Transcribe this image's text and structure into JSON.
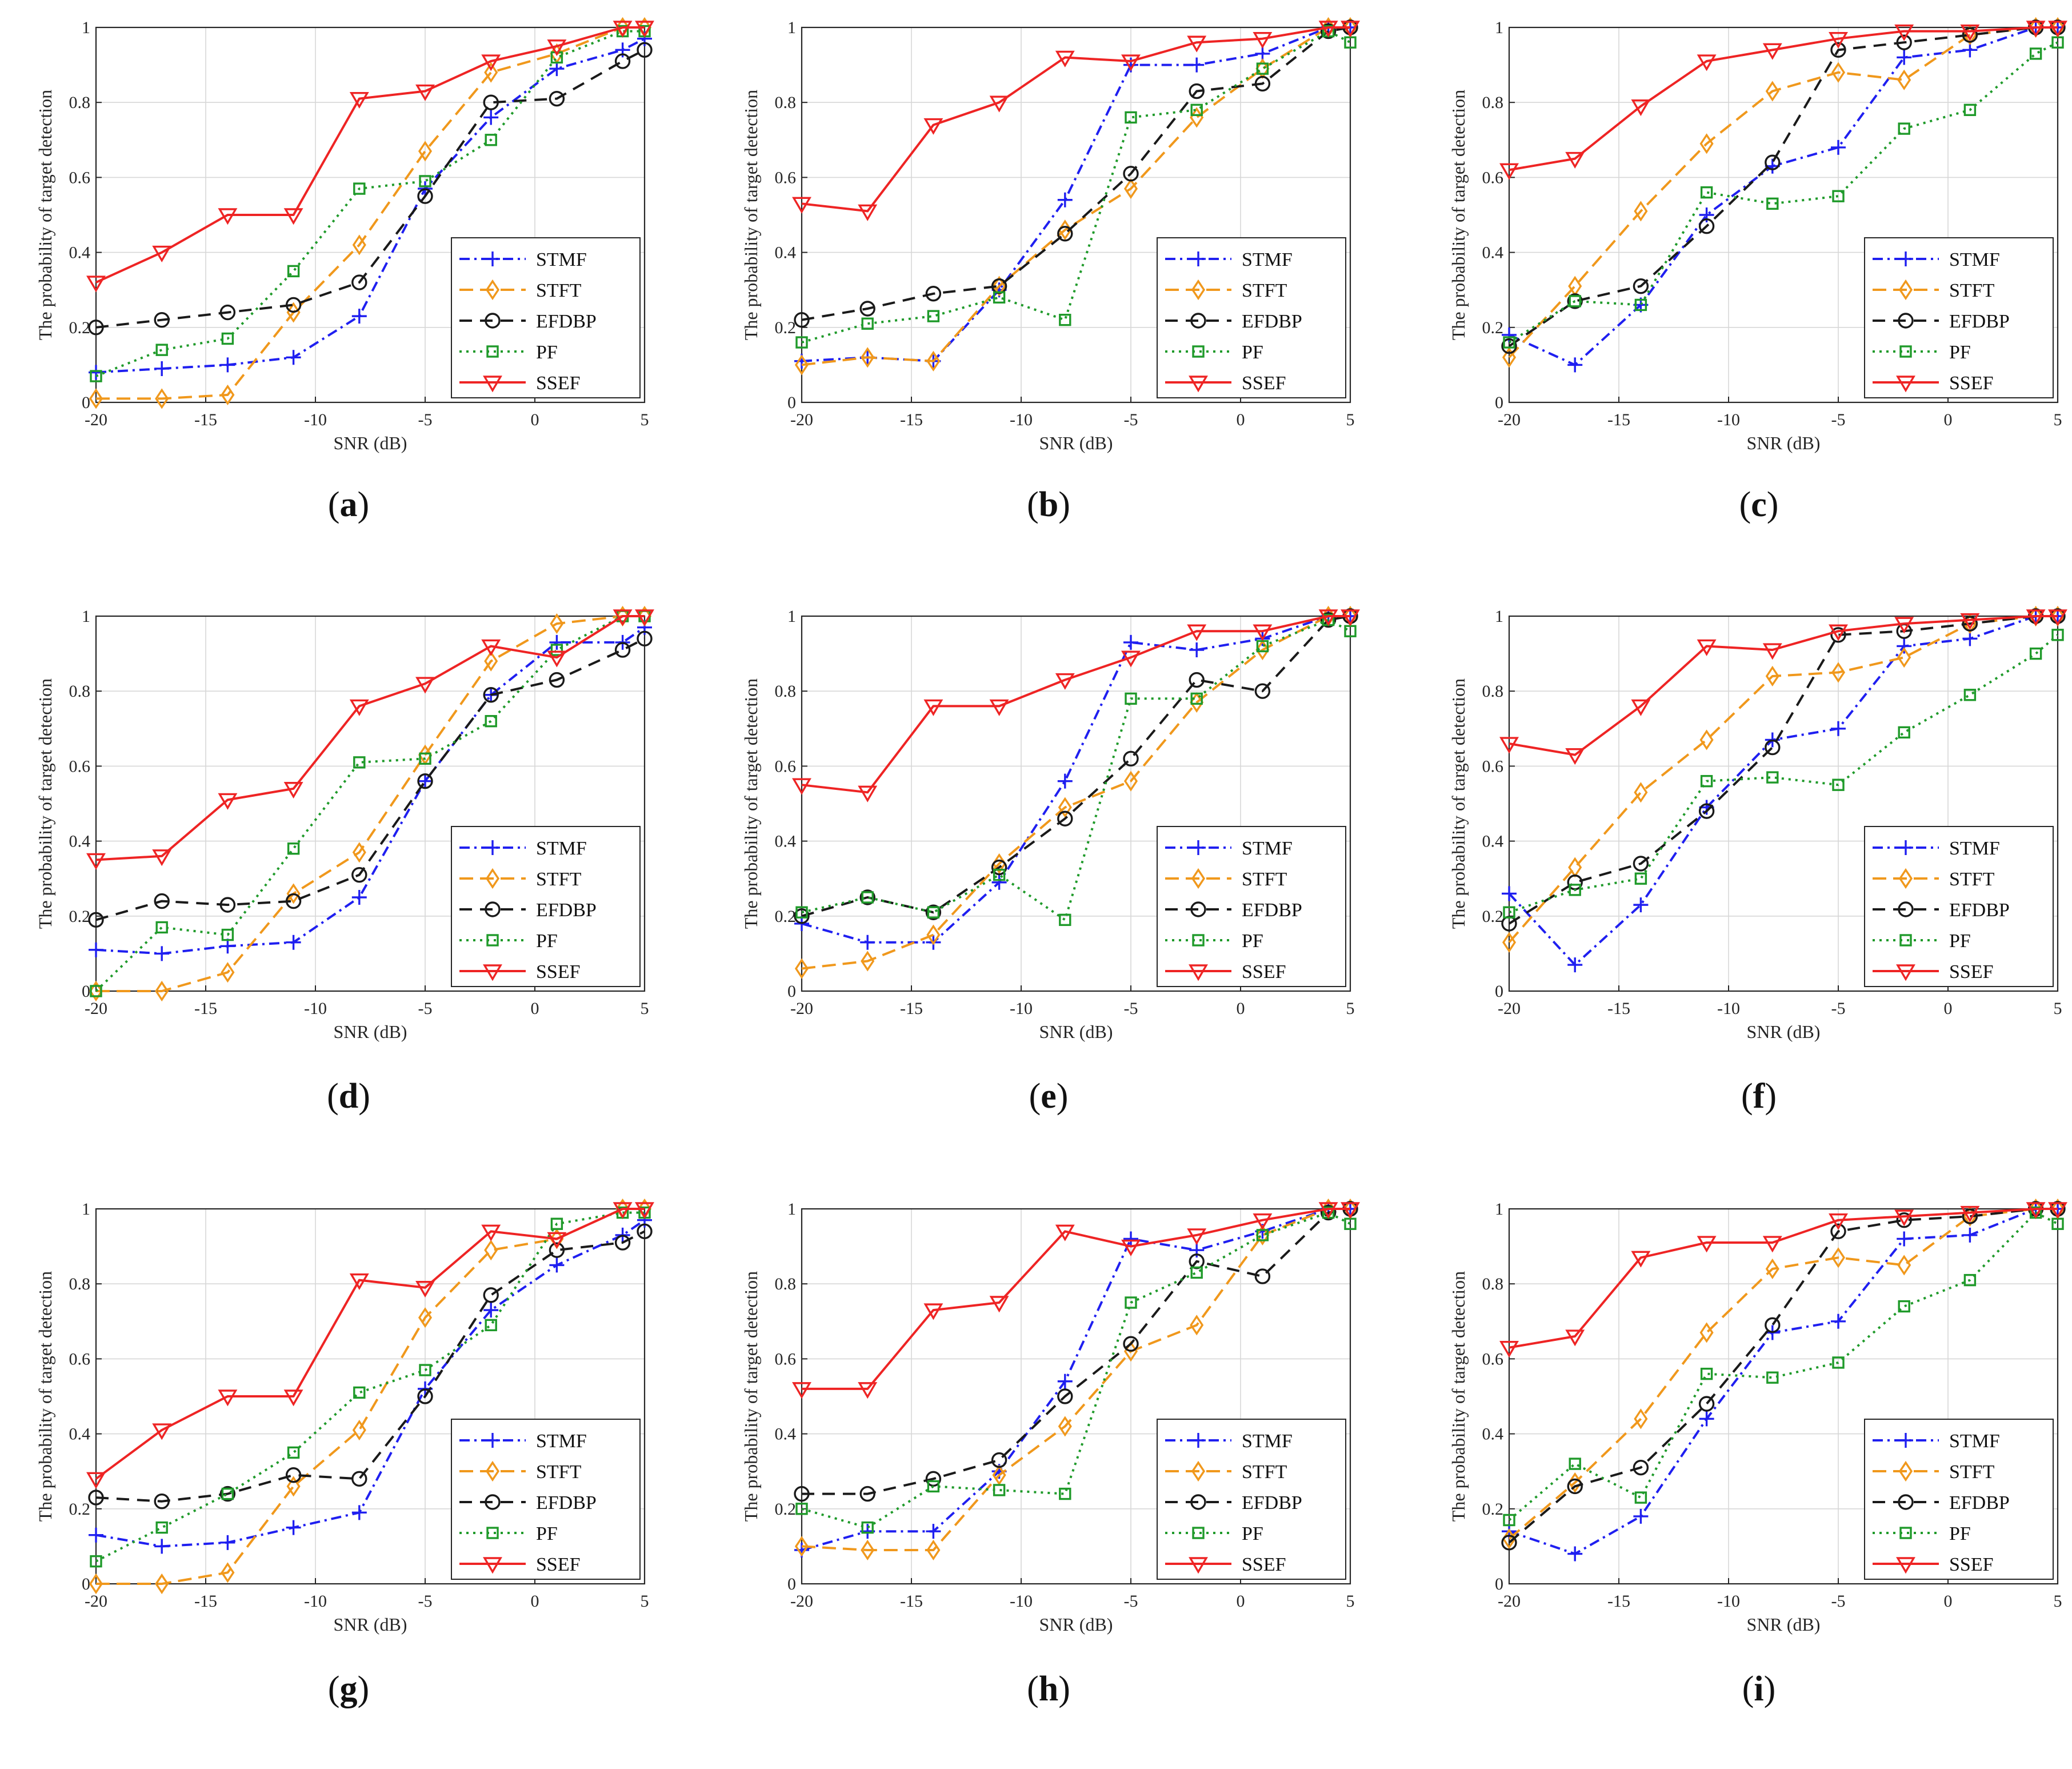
{
  "figure": {
    "colors": {
      "STMF": "#1f1ff0",
      "STFT": "#f0981c",
      "EFDBP": "#1a1a1a",
      "PF": "#1f9a2a",
      "SSEF": "#ee2424"
    }
  },
  "chart_data": [
    {
      "type": "line",
      "panel": "a",
      "caption_open": "(",
      "caption_label": "a",
      "caption_close": ")",
      "xlabel": "SNR (dB)",
      "ylabel": "The probability of target detection",
      "xlim": [
        -20,
        5
      ],
      "ylim": [
        0,
        1
      ],
      "xticks": [
        "-20",
        "-15",
        "-10",
        "-5",
        "0",
        "5"
      ],
      "yticks": [
        "0",
        "0.2",
        "0.4",
        "0.6",
        "0.8",
        "1"
      ],
      "x": [
        -20,
        -17,
        -14,
        -11,
        -8,
        -5,
        -2,
        1,
        4,
        5
      ],
      "legend": [
        "STMF",
        "STFT",
        "EFDBP",
        "PF",
        "SSEF"
      ],
      "series": [
        {
          "name": "STMF",
          "values": [
            0.08,
            0.09,
            0.1,
            0.12,
            0.23,
            0.57,
            0.76,
            0.89,
            0.94,
            0.97
          ]
        },
        {
          "name": "STFT",
          "values": [
            0.01,
            0.01,
            0.02,
            0.24,
            0.42,
            0.67,
            0.88,
            0.93,
            1.0,
            1.0
          ]
        },
        {
          "name": "EFDBP",
          "values": [
            0.2,
            0.22,
            0.24,
            0.26,
            0.32,
            0.55,
            0.8,
            0.81,
            0.91,
            0.94
          ]
        },
        {
          "name": "PF",
          "values": [
            0.07,
            0.14,
            0.17,
            0.35,
            0.57,
            0.59,
            0.7,
            0.92,
            0.99,
            0.99
          ]
        },
        {
          "name": "SSEF",
          "values": [
            0.32,
            0.4,
            0.5,
            0.5,
            0.81,
            0.83,
            0.91,
            0.95,
            1.0,
            1.0
          ]
        }
      ]
    },
    {
      "type": "line",
      "panel": "b",
      "caption_open": "(",
      "caption_label": "b",
      "caption_close": ")",
      "xlabel": "SNR (dB)",
      "ylabel": "The probability of target detection",
      "xlim": [
        -20,
        5
      ],
      "ylim": [
        0,
        1
      ],
      "xticks": [
        "-20",
        "-15",
        "-10",
        "-5",
        "0",
        "5"
      ],
      "yticks": [
        "0",
        "0.2",
        "0.4",
        "0.6",
        "0.8",
        "1"
      ],
      "x": [
        -20,
        -17,
        -14,
        -11,
        -8,
        -5,
        -2,
        1,
        4,
        5
      ],
      "legend": [
        "STMF",
        "STFT",
        "EFDBP",
        "PF",
        "SSEF"
      ],
      "series": [
        {
          "name": "STMF",
          "values": [
            0.11,
            0.12,
            0.11,
            0.3,
            0.54,
            0.9,
            0.9,
            0.93,
            1.0,
            1.0
          ]
        },
        {
          "name": "STFT",
          "values": [
            0.1,
            0.12,
            0.11,
            0.31,
            0.46,
            0.57,
            0.76,
            0.89,
            1.0,
            1.0
          ]
        },
        {
          "name": "EFDBP",
          "values": [
            0.22,
            0.25,
            0.29,
            0.31,
            0.45,
            0.61,
            0.83,
            0.85,
            0.99,
            1.0
          ]
        },
        {
          "name": "PF",
          "values": [
            0.16,
            0.21,
            0.23,
            0.28,
            0.22,
            0.76,
            0.78,
            0.89,
            0.99,
            0.96
          ]
        },
        {
          "name": "SSEF",
          "values": [
            0.53,
            0.51,
            0.74,
            0.8,
            0.92,
            0.91,
            0.96,
            0.97,
            1.0,
            1.0
          ]
        }
      ]
    },
    {
      "type": "line",
      "panel": "c",
      "caption_open": "(",
      "caption_label": "c",
      "caption_close": ")",
      "xlabel": "SNR (dB)",
      "ylabel": "The probability of target detection",
      "xlim": [
        -20,
        5
      ],
      "ylim": [
        0,
        1
      ],
      "xticks": [
        "-20",
        "-15",
        "-10",
        "-5",
        "0",
        "5"
      ],
      "yticks": [
        "0",
        "0.2",
        "0.4",
        "0.6",
        "0.8",
        "1"
      ],
      "x": [
        -20,
        -17,
        -14,
        -11,
        -8,
        -5,
        -2,
        1,
        4,
        5
      ],
      "legend": [
        "STMF",
        "STFT",
        "EFDBP",
        "PF",
        "SSEF"
      ],
      "series": [
        {
          "name": "STMF",
          "values": [
            0.18,
            0.1,
            0.26,
            0.5,
            0.63,
            0.68,
            0.92,
            0.94,
            1.0,
            1.0
          ]
        },
        {
          "name": "STFT",
          "values": [
            0.12,
            0.31,
            0.51,
            0.69,
            0.83,
            0.88,
            0.86,
            0.98,
            1.0,
            1.0
          ]
        },
        {
          "name": "EFDBP",
          "values": [
            0.15,
            0.27,
            0.31,
            0.47,
            0.64,
            0.94,
            0.96,
            0.98,
            1.0,
            1.0
          ]
        },
        {
          "name": "PF",
          "values": [
            0.16,
            0.27,
            0.26,
            0.56,
            0.53,
            0.55,
            0.73,
            0.78,
            0.93,
            0.96
          ]
        },
        {
          "name": "SSEF",
          "values": [
            0.62,
            0.65,
            0.79,
            0.91,
            0.94,
            0.97,
            0.99,
            0.99,
            1.0,
            1.0
          ]
        }
      ]
    },
    {
      "type": "line",
      "panel": "d",
      "caption_open": "(",
      "caption_label": "d",
      "caption_close": ")",
      "xlabel": "SNR (dB)",
      "ylabel": "The probability of target detection",
      "xlim": [
        -20,
        5
      ],
      "ylim": [
        0,
        1
      ],
      "xticks": [
        "-20",
        "-15",
        "-10",
        "-5",
        "0",
        "5"
      ],
      "yticks": [
        "0",
        "0.2",
        "0.4",
        "0.6",
        "0.8",
        "1"
      ],
      "x": [
        -20,
        -17,
        -14,
        -11,
        -8,
        -5,
        -2,
        1,
        4,
        5
      ],
      "legend": [
        "STMF",
        "STFT",
        "EFDBP",
        "PF",
        "SSEF"
      ],
      "series": [
        {
          "name": "STMF",
          "values": [
            0.11,
            0.1,
            0.12,
            0.13,
            0.25,
            0.56,
            0.79,
            0.93,
            0.93,
            0.97
          ]
        },
        {
          "name": "STFT",
          "values": [
            0.0,
            0.0,
            0.05,
            0.26,
            0.37,
            0.63,
            0.88,
            0.98,
            1.0,
            1.0
          ]
        },
        {
          "name": "EFDBP",
          "values": [
            0.19,
            0.24,
            0.23,
            0.24,
            0.31,
            0.56,
            0.79,
            0.83,
            0.91,
            0.94
          ]
        },
        {
          "name": "PF",
          "values": [
            0.0,
            0.17,
            0.15,
            0.38,
            0.61,
            0.62,
            0.72,
            0.91,
            1.0,
            1.0
          ]
        },
        {
          "name": "SSEF",
          "values": [
            0.35,
            0.36,
            0.51,
            0.54,
            0.76,
            0.82,
            0.92,
            0.89,
            1.0,
            1.0
          ]
        }
      ]
    },
    {
      "type": "line",
      "panel": "e",
      "caption_open": "(",
      "caption_label": "e",
      "caption_close": ")",
      "xlabel": "SNR (dB)",
      "ylabel": "The probability of target detection",
      "xlim": [
        -20,
        5
      ],
      "ylim": [
        0,
        1
      ],
      "xticks": [
        "-20",
        "-15",
        "-10",
        "-5",
        "0",
        "5"
      ],
      "yticks": [
        "0",
        "0.2",
        "0.4",
        "0.6",
        "0.8",
        "1"
      ],
      "x": [
        -20,
        -17,
        -14,
        -11,
        -8,
        -5,
        -2,
        1,
        4,
        5
      ],
      "legend": [
        "STMF",
        "STFT",
        "EFDBP",
        "PF",
        "SSEF"
      ],
      "series": [
        {
          "name": "STMF",
          "values": [
            0.18,
            0.13,
            0.13,
            0.29,
            0.56,
            0.93,
            0.91,
            0.94,
            1.0,
            1.0
          ]
        },
        {
          "name": "STFT",
          "values": [
            0.06,
            0.08,
            0.15,
            0.34,
            0.49,
            0.56,
            0.77,
            0.91,
            1.0,
            1.0
          ]
        },
        {
          "name": "EFDBP",
          "values": [
            0.2,
            0.25,
            0.21,
            0.33,
            0.46,
            0.62,
            0.83,
            0.8,
            0.99,
            1.0
          ]
        },
        {
          "name": "PF",
          "values": [
            0.21,
            0.25,
            0.21,
            0.31,
            0.19,
            0.78,
            0.78,
            0.92,
            0.99,
            0.96
          ]
        },
        {
          "name": "SSEF",
          "values": [
            0.55,
            0.53,
            0.76,
            0.76,
            0.83,
            0.89,
            0.96,
            0.96,
            1.0,
            1.0
          ]
        }
      ]
    },
    {
      "type": "line",
      "panel": "f",
      "caption_open": "(",
      "caption_label": "f",
      "caption_close": ")",
      "xlabel": "SNR (dB)",
      "ylabel": "The probability of target detection",
      "xlim": [
        -20,
        5
      ],
      "ylim": [
        0,
        1
      ],
      "xticks": [
        "-20",
        "-15",
        "-10",
        "-5",
        "0",
        "5"
      ],
      "yticks": [
        "0",
        "0.2",
        "0.4",
        "0.6",
        "0.8",
        "1"
      ],
      "x": [
        -20,
        -17,
        -14,
        -11,
        -8,
        -5,
        -2,
        1,
        4,
        5
      ],
      "legend": [
        "STMF",
        "STFT",
        "EFDBP",
        "PF",
        "SSEF"
      ],
      "series": [
        {
          "name": "STMF",
          "values": [
            0.26,
            0.07,
            0.23,
            0.49,
            0.67,
            0.7,
            0.92,
            0.94,
            1.0,
            1.0
          ]
        },
        {
          "name": "STFT",
          "values": [
            0.13,
            0.33,
            0.53,
            0.67,
            0.84,
            0.85,
            0.89,
            0.98,
            1.0,
            1.0
          ]
        },
        {
          "name": "EFDBP",
          "values": [
            0.18,
            0.29,
            0.34,
            0.48,
            0.65,
            0.95,
            0.96,
            0.98,
            1.0,
            1.0
          ]
        },
        {
          "name": "PF",
          "values": [
            0.21,
            0.27,
            0.3,
            0.56,
            0.57,
            0.55,
            0.69,
            0.79,
            0.9,
            0.95
          ]
        },
        {
          "name": "SSEF",
          "values": [
            0.66,
            0.63,
            0.76,
            0.92,
            0.91,
            0.96,
            0.98,
            0.99,
            1.0,
            1.0
          ]
        }
      ]
    },
    {
      "type": "line",
      "panel": "g",
      "caption_open": "(",
      "caption_label": "g",
      "caption_close": ")",
      "xlabel": "SNR (dB)",
      "ylabel": "The probability of target detection",
      "xlim": [
        -20,
        5
      ],
      "ylim": [
        0,
        1
      ],
      "xticks": [
        "-20",
        "-15",
        "-10",
        "-5",
        "0",
        "5"
      ],
      "yticks": [
        "0",
        "0.2",
        "0.4",
        "0.6",
        "0.8",
        "1"
      ],
      "x": [
        -20,
        -17,
        -14,
        -11,
        -8,
        -5,
        -2,
        1,
        4,
        5
      ],
      "legend": [
        "STMF",
        "STFT",
        "EFDBP",
        "PF",
        "SSEF"
      ],
      "series": [
        {
          "name": "STMF",
          "values": [
            0.13,
            0.1,
            0.11,
            0.15,
            0.19,
            0.52,
            0.73,
            0.85,
            0.93,
            0.97
          ]
        },
        {
          "name": "STFT",
          "values": [
            0.0,
            0.0,
            0.03,
            0.26,
            0.41,
            0.71,
            0.89,
            0.92,
            1.0,
            1.0
          ]
        },
        {
          "name": "EFDBP",
          "values": [
            0.23,
            0.22,
            0.24,
            0.29,
            0.28,
            0.5,
            0.77,
            0.89,
            0.91,
            0.94
          ]
        },
        {
          "name": "PF",
          "values": [
            0.06,
            0.15,
            0.24,
            0.35,
            0.51,
            0.57,
            0.69,
            0.96,
            0.99,
            0.99
          ]
        },
        {
          "name": "SSEF",
          "values": [
            0.28,
            0.41,
            0.5,
            0.5,
            0.81,
            0.79,
            0.94,
            0.92,
            1.0,
            1.0
          ]
        }
      ]
    },
    {
      "type": "line",
      "panel": "h",
      "caption_open": "(",
      "caption_label": "h",
      "caption_close": ")",
      "xlabel": "SNR (dB)",
      "ylabel": "The probability of target detection",
      "xlim": [
        -20,
        5
      ],
      "ylim": [
        0,
        1
      ],
      "xticks": [
        "-20",
        "-15",
        "-10",
        "-5",
        "0",
        "5"
      ],
      "yticks": [
        "0",
        "0.2",
        "0.4",
        "0.6",
        "0.8",
        "1"
      ],
      "x": [
        -20,
        -17,
        -14,
        -11,
        -8,
        -5,
        -2,
        1,
        4,
        5
      ],
      "legend": [
        "STMF",
        "STFT",
        "EFDBP",
        "PF",
        "SSEF"
      ],
      "series": [
        {
          "name": "STMF",
          "values": [
            0.09,
            0.14,
            0.14,
            0.3,
            0.54,
            0.92,
            0.89,
            0.94,
            1.0,
            1.0
          ]
        },
        {
          "name": "STFT",
          "values": [
            0.1,
            0.09,
            0.09,
            0.29,
            0.42,
            0.62,
            0.69,
            0.93,
            1.0,
            1.0
          ]
        },
        {
          "name": "EFDBP",
          "values": [
            0.24,
            0.24,
            0.28,
            0.33,
            0.5,
            0.64,
            0.86,
            0.82,
            0.99,
            1.0
          ]
        },
        {
          "name": "PF",
          "values": [
            0.2,
            0.15,
            0.26,
            0.25,
            0.24,
            0.75,
            0.83,
            0.93,
            0.99,
            0.96
          ]
        },
        {
          "name": "SSEF",
          "values": [
            0.52,
            0.52,
            0.73,
            0.75,
            0.94,
            0.9,
            0.93,
            0.97,
            1.0,
            1.0
          ]
        }
      ]
    },
    {
      "type": "line",
      "panel": "i",
      "caption_open": "(",
      "caption_label": "i",
      "caption_close": ")",
      "xlabel": "SNR (dB)",
      "ylabel": "The probability of target detection",
      "xlim": [
        -20,
        5
      ],
      "ylim": [
        0,
        1
      ],
      "xticks": [
        "-20",
        "-15",
        "-10",
        "-5",
        "0",
        "5"
      ],
      "yticks": [
        "0",
        "0.2",
        "0.4",
        "0.6",
        "0.8",
        "1"
      ],
      "x": [
        -20,
        -17,
        -14,
        -11,
        -8,
        -5,
        -2,
        1,
        4,
        5
      ],
      "legend": [
        "STMF",
        "STFT",
        "EFDBP",
        "PF",
        "SSEF"
      ],
      "series": [
        {
          "name": "STMF",
          "values": [
            0.14,
            0.08,
            0.18,
            0.44,
            0.67,
            0.7,
            0.92,
            0.93,
            1.0,
            1.0
          ]
        },
        {
          "name": "STFT",
          "values": [
            0.12,
            0.27,
            0.44,
            0.67,
            0.84,
            0.87,
            0.85,
            0.98,
            1.0,
            1.0
          ]
        },
        {
          "name": "EFDBP",
          "values": [
            0.11,
            0.26,
            0.31,
            0.48,
            0.69,
            0.94,
            0.97,
            0.98,
            1.0,
            1.0
          ]
        },
        {
          "name": "PF",
          "values": [
            0.17,
            0.32,
            0.23,
            0.56,
            0.55,
            0.59,
            0.74,
            0.81,
            0.99,
            0.96
          ]
        },
        {
          "name": "SSEF",
          "values": [
            0.63,
            0.66,
            0.87,
            0.91,
            0.91,
            0.97,
            0.98,
            0.99,
            1.0,
            1.0
          ]
        }
      ]
    }
  ]
}
